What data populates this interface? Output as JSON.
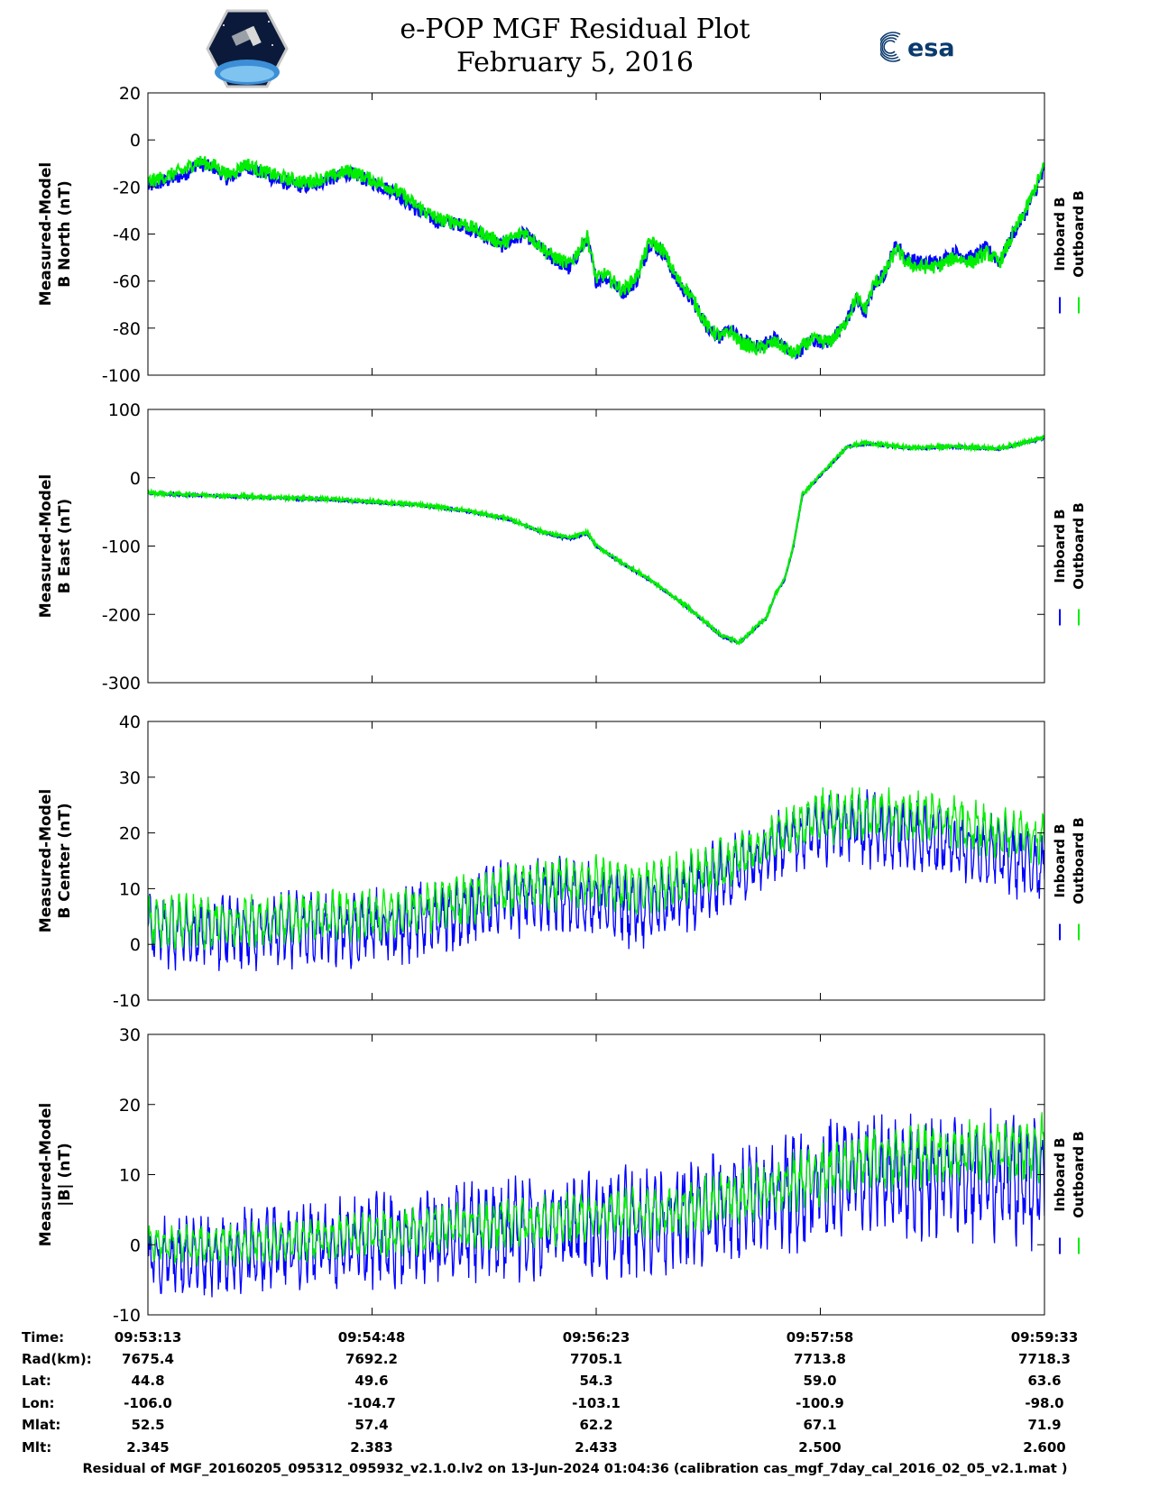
{
  "header": {
    "title_line1": "e-POP MGF Residual Plot",
    "title_line2": "February 5, 2016",
    "logo_left_icon": "cassiope-satellite-logo",
    "logo_right_icon": "esa-logo",
    "logo_right_text": "esa"
  },
  "colors": {
    "inboard": "#0000ff",
    "outboard": "#00ee00"
  },
  "legend": {
    "inboard": "Inboard B",
    "outboard": "Outboard B"
  },
  "chart_data": [
    {
      "type": "line",
      "ylabel": [
        "Measured-Model",
        "B North (nT)"
      ],
      "ylim": [
        -100,
        20
      ],
      "yticks": [
        -100,
        -80,
        -60,
        -40,
        -20,
        0,
        20
      ],
      "x": [
        0,
        40,
        55,
        75,
        90,
        110,
        125,
        150,
        175,
        200,
        225,
        250,
        275,
        300,
        325,
        350,
        370,
        380,
        395,
        420,
        450,
        470,
        490,
        500,
        510,
        530,
        545,
        560,
        575,
        590,
        600,
        610,
        625,
        640,
        650,
        660,
        680,
        700,
        720,
        740,
        760,
        775,
        790,
        800,
        810,
        820,
        835,
        845,
        860,
        880,
        900,
        920,
        935,
        950,
        965,
        980,
        1000
      ],
      "series": [
        {
          "name": "Inboard B",
          "values": [
            -20,
            -15,
            -10,
            -12,
            -17,
            -11,
            -14,
            -18,
            -20,
            -17,
            -14,
            -18,
            -22,
            -30,
            -35,
            -36,
            -40,
            -42,
            -45,
            -40,
            -50,
            -55,
            -42,
            -60,
            -58,
            -65,
            -60,
            -44,
            -48,
            -60,
            -65,
            -70,
            -80,
            -84,
            -80,
            -85,
            -88,
            -84,
            -92,
            -85,
            -86,
            -80,
            -68,
            -74,
            -61,
            -58,
            -44,
            -50,
            -52,
            -52,
            -48,
            -50,
            -46,
            -52,
            -40,
            -30,
            -13
          ]
        },
        {
          "name": "Outboard B",
          "values": [
            -18,
            -13,
            -9,
            -11,
            -15,
            -10,
            -13,
            -16,
            -18,
            -16,
            -13,
            -17,
            -21,
            -28,
            -34,
            -35,
            -39,
            -41,
            -44,
            -39,
            -49,
            -53,
            -41,
            -59,
            -57,
            -64,
            -58,
            -43,
            -47,
            -59,
            -63,
            -69,
            -80,
            -84,
            -81,
            -86,
            -89,
            -86,
            -91,
            -85,
            -86,
            -80,
            -67,
            -72,
            -61,
            -58,
            -46,
            -52,
            -54,
            -54,
            -50,
            -52,
            -48,
            -52,
            -40,
            -29,
            -11
          ]
        }
      ]
    },
    {
      "type": "line",
      "ylabel": [
        "Measured-Model",
        "B East (nT)"
      ],
      "ylim": [
        -300,
        100
      ],
      "yticks": [
        -300,
        -200,
        -100,
        0,
        100
      ],
      "x": [
        0,
        100,
        200,
        300,
        350,
        400,
        440,
        470,
        490,
        500,
        520,
        560,
        600,
        620,
        640,
        660,
        690,
        700,
        710,
        720,
        730,
        780,
        800,
        850,
        900,
        950,
        1000
      ],
      "series": [
        {
          "name": "Inboard B",
          "values": [
            -23,
            -28,
            -32,
            -40,
            -48,
            -60,
            -80,
            -90,
            -82,
            -100,
            -118,
            -150,
            -188,
            -210,
            -232,
            -242,
            -205,
            -170,
            -150,
            -100,
            -25,
            45,
            50,
            43,
            45,
            42,
            58
          ]
        },
        {
          "name": "Outboard B",
          "values": [
            -22,
            -27,
            -31,
            -39,
            -47,
            -59,
            -79,
            -88,
            -80,
            -99,
            -117,
            -149,
            -187,
            -209,
            -231,
            -241,
            -204,
            -169,
            -149,
            -99,
            -24,
            46,
            51,
            44,
            46,
            43,
            59
          ]
        }
      ]
    },
    {
      "type": "line",
      "ylabel": [
        "Measured-Model",
        "B Center (nT)"
      ],
      "ylim": [
        -10,
        40
      ],
      "yticks": [
        -10,
        0,
        10,
        20,
        30,
        40
      ],
      "x": [
        0,
        100,
        200,
        250,
        300,
        350,
        400,
        450,
        500,
        550,
        600,
        650,
        700,
        750,
        800,
        850,
        900,
        950,
        1000
      ],
      "series": [
        {
          "name": "Inboard B",
          "values": [
            3,
            2,
            3,
            3,
            4,
            6,
            8,
            9,
            8,
            6,
            9,
            13,
            18,
            21,
            21,
            20,
            18,
            16,
            14
          ]
        },
        {
          "name": "Outboard B",
          "values": [
            4,
            4,
            5,
            5,
            6,
            8,
            10,
            11,
            11,
            10,
            12,
            15,
            19,
            23,
            23,
            23,
            22,
            20,
            19
          ]
        }
      ]
    },
    {
      "type": "line",
      "ylabel": [
        "Measured-Model",
        "|B| (nT)"
      ],
      "ylim": [
        -10,
        30
      ],
      "yticks": [
        -10,
        0,
        10,
        20,
        30
      ],
      "x": [
        0,
        100,
        200,
        300,
        400,
        500,
        600,
        700,
        750,
        800,
        900,
        1000
      ],
      "series": [
        {
          "name": "Inboard B",
          "values": [
            -2,
            -1,
            0,
            1,
            2,
            3,
            4,
            7,
            9,
            10,
            10,
            9
          ]
        },
        {
          "name": "Outboard B",
          "values": [
            0,
            0,
            1,
            2,
            3,
            4,
            5,
            8,
            10,
            12,
            13,
            14
          ]
        }
      ]
    }
  ],
  "ephemeris": {
    "labels": [
      "Time:",
      "Rad(km):",
      "Lat:",
      "Lon:",
      "Mlat:",
      "Mlt:"
    ],
    "columns": [
      [
        "09:53:13",
        "7675.4",
        "44.8",
        "-106.0",
        "52.5",
        "2.345"
      ],
      [
        "09:54:48",
        "7692.2",
        "49.6",
        "-104.7",
        "57.4",
        "2.383"
      ],
      [
        "09:56:23",
        "7705.1",
        "54.3",
        "-103.1",
        "62.2",
        "2.433"
      ],
      [
        "09:57:58",
        "7713.8",
        "59.0",
        "-100.9",
        "67.1",
        "2.500"
      ],
      [
        "09:59:33",
        "7718.3",
        "63.6",
        "-98.0",
        "71.9",
        "2.600"
      ]
    ]
  },
  "caption": "Residual of MGF_20160205_095312_095932_v2.1.0.lv2 on 13-Jun-2024 01:04:36 (calibration cas_mgf_7day_cal_2016_02_05_v2.1.mat )"
}
